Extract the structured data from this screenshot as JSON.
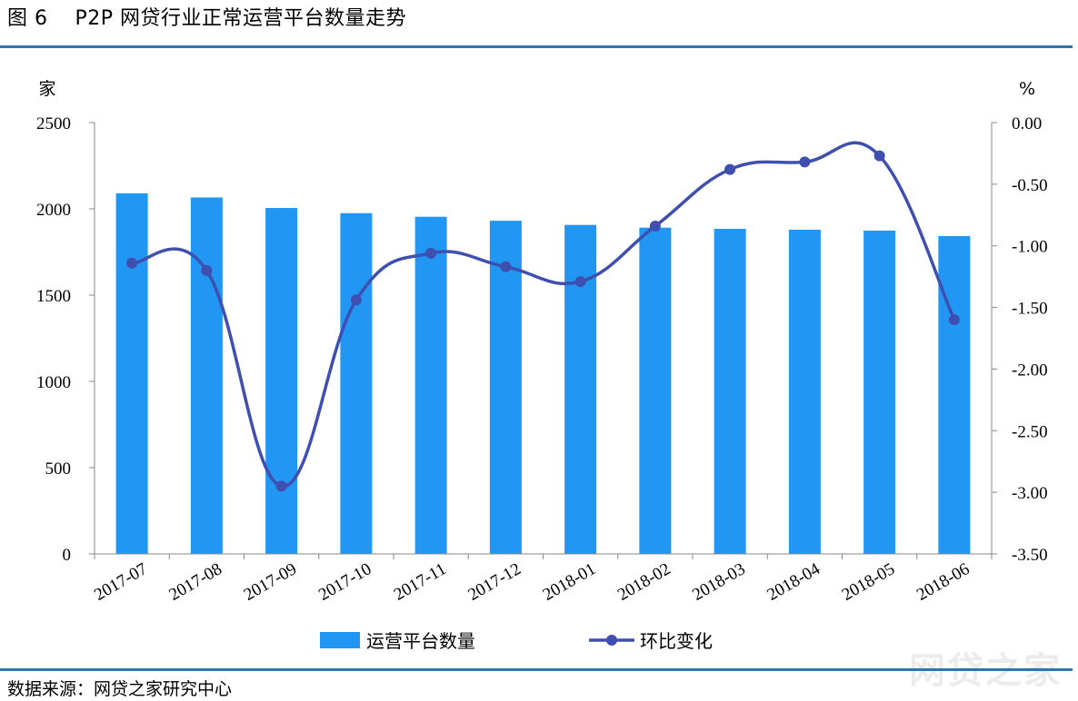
{
  "figure": {
    "title": "图 6    P2P 网贷行业正常运营平台数量走势",
    "source": "数据来源：网贷之家研究中心",
    "watermark": "网贷之家"
  },
  "colors": {
    "bar": "#2196f3",
    "line": "#3f4fb0",
    "rule": "#2e75b6"
  },
  "chart_data": {
    "type": "bar",
    "categories": [
      "2017-07",
      "2017-08",
      "2017-09",
      "2017-10",
      "2017-11",
      "2017-12",
      "2018-01",
      "2018-02",
      "2018-03",
      "2018-04",
      "2018-05",
      "2018-06"
    ],
    "series": [
      {
        "name": "运营平台数量",
        "type": "bar",
        "axis": "left",
        "values": [
          2090,
          2066,
          2005,
          1975,
          1954,
          1931,
          1907,
          1891,
          1884,
          1879,
          1874,
          1842
        ]
      },
      {
        "name": "环比变化",
        "type": "line",
        "axis": "right",
        "marker": "circle",
        "smooth": true,
        "values": [
          -1.14,
          -1.2,
          -2.95,
          -1.44,
          -1.06,
          -1.17,
          -1.29,
          -0.84,
          -0.38,
          -0.32,
          -0.27,
          -1.6
        ]
      }
    ],
    "left_axis": {
      "label": "家",
      "ylim": [
        0,
        2500
      ],
      "ticks": [
        "0",
        "500",
        "1000",
        "1500",
        "2000",
        "2500"
      ],
      "tick_values": [
        0,
        500,
        1000,
        1500,
        2000,
        2500
      ]
    },
    "right_axis": {
      "label": "%",
      "ylim": [
        -3.5,
        0
      ],
      "ticks": [
        "0.00",
        "-0.50",
        "-1.00",
        "-1.50",
        "-2.00",
        "-2.50",
        "-3.00",
        "-3.50"
      ],
      "tick_values": [
        0,
        -0.5,
        -1,
        -1.5,
        -2,
        -2.5,
        -3,
        -3.5
      ]
    },
    "legend": {
      "placement": "bottom-center"
    },
    "grid": false
  }
}
